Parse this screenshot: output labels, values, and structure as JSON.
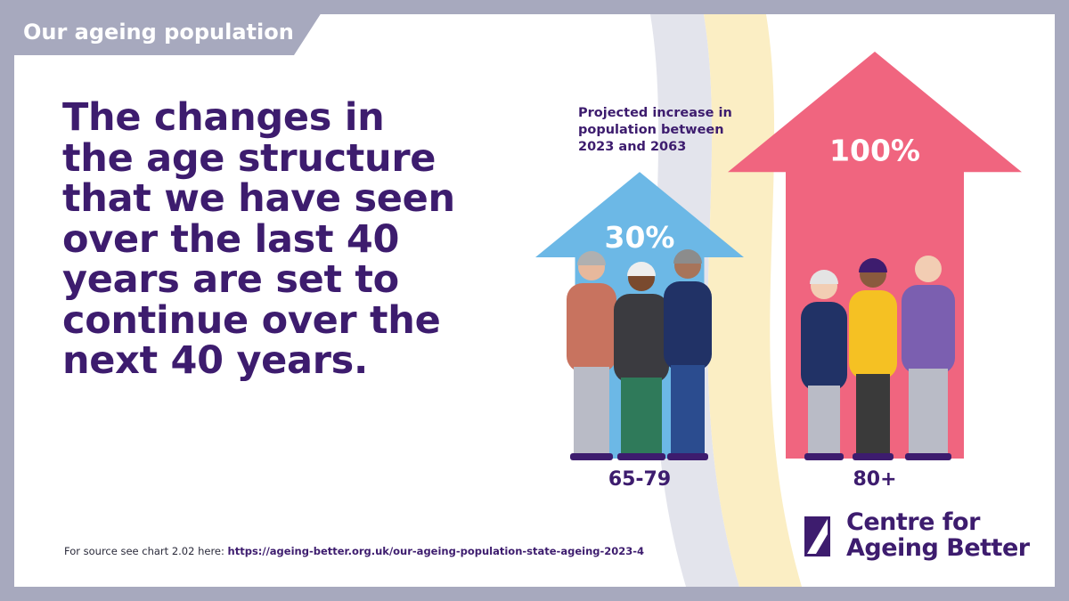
{
  "header": {
    "tag": "Our ageing population"
  },
  "headline": [
    "The changes in",
    "the age structure",
    "that we have seen",
    "over the last 40",
    "years are set to",
    "continue over the",
    "next 40 years."
  ],
  "chart_data": {
    "type": "bar",
    "subtitle": [
      "Projected increase in",
      "population between",
      "2023 and 2063"
    ],
    "categories": [
      "65-79",
      "80+"
    ],
    "values": [
      30,
      100
    ],
    "value_labels": [
      "30%",
      "100%"
    ],
    "colors": [
      "#6cb8e6",
      "#f0657f"
    ]
  },
  "source": {
    "text": "For source see chart 2.02 here:",
    "url": "https://ageing-better.org.uk/our-ageing-population-state-ageing-2023-4"
  },
  "logo": {
    "line1": "Centre for",
    "line2": "Ageing Better"
  }
}
